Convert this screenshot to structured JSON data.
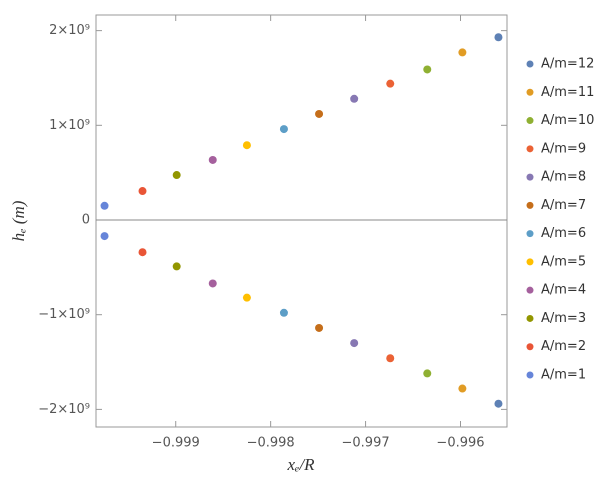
{
  "chart_data": {
    "type": "scatter",
    "x_label": "xₑ/R",
    "y_label": "hₑ (m)",
    "xlim": [
      -0.99984,
      -0.99551
    ],
    "ylim": [
      -2186000000,
      2165000000
    ],
    "xticks": [
      {
        "value": -0.999,
        "label": "−0.999"
      },
      {
        "value": -0.998,
        "label": "−0.998"
      },
      {
        "value": -0.997,
        "label": "−0.997"
      },
      {
        "value": -0.996,
        "label": "−0.996"
      }
    ],
    "yticks": [
      {
        "value": -2000000000,
        "label": "−2×10⁹"
      },
      {
        "value": -1000000000,
        "label": "−1×10⁹"
      },
      0,
      {
        "value": 1000000000,
        "label": "1×10⁹"
      },
      {
        "value": 2000000000,
        "label": "2×10⁹"
      }
    ],
    "legend_position": "right",
    "series": [
      {
        "name": "A/m=12",
        "color": "#5E81B5",
        "x": [
          -0.9956,
          -0.9956
        ],
        "values": [
          1930000000,
          -1940000000
        ]
      },
      {
        "name": "A/m=11",
        "color": "#E19C24",
        "x": [
          -0.99598,
          -0.99598
        ],
        "values": [
          1770000000,
          -1780000000
        ]
      },
      {
        "name": "A/m=10",
        "color": "#8FB032",
        "x": [
          -0.99635,
          -0.99635
        ],
        "values": [
          1590000000,
          -1620000000
        ]
      },
      {
        "name": "A/m=9",
        "color": "#EB6235",
        "x": [
          -0.99674,
          -0.99674
        ],
        "values": [
          1440000000,
          -1460000000
        ]
      },
      {
        "name": "A/m=8",
        "color": "#8778B3",
        "x": [
          -0.99712,
          -0.99712
        ],
        "values": [
          1280000000,
          -1300000000
        ]
      },
      {
        "name": "A/m=7",
        "color": "#C56E1A",
        "x": [
          -0.99749,
          -0.99749
        ],
        "values": [
          1120000000,
          -1140000000
        ]
      },
      {
        "name": "A/m=6",
        "color": "#5D9EC7",
        "x": [
          -0.99786,
          -0.99786
        ],
        "values": [
          960000000,
          -980000000
        ]
      },
      {
        "name": "A/m=5",
        "color": "#FFBF00",
        "x": [
          -0.99825,
          -0.99825
        ],
        "values": [
          790000000,
          -820000000
        ]
      },
      {
        "name": "A/m=4",
        "color": "#A5609D",
        "x": [
          -0.99861,
          -0.99861
        ],
        "values": [
          634000000,
          -670000000
        ]
      },
      {
        "name": "A/m=3",
        "color": "#929600",
        "x": [
          -0.99899,
          -0.99899
        ],
        "values": [
          475000000,
          -490000000
        ]
      },
      {
        "name": "A/m=2",
        "color": "#E95536",
        "x": [
          -0.99935,
          -0.99935
        ],
        "values": [
          306000000,
          -340000000
        ]
      },
      {
        "name": "A/m=1",
        "color": "#6685D9",
        "x": [
          -0.99975,
          -0.99975
        ],
        "values": [
          150000000,
          -170000000
        ]
      }
    ]
  }
}
